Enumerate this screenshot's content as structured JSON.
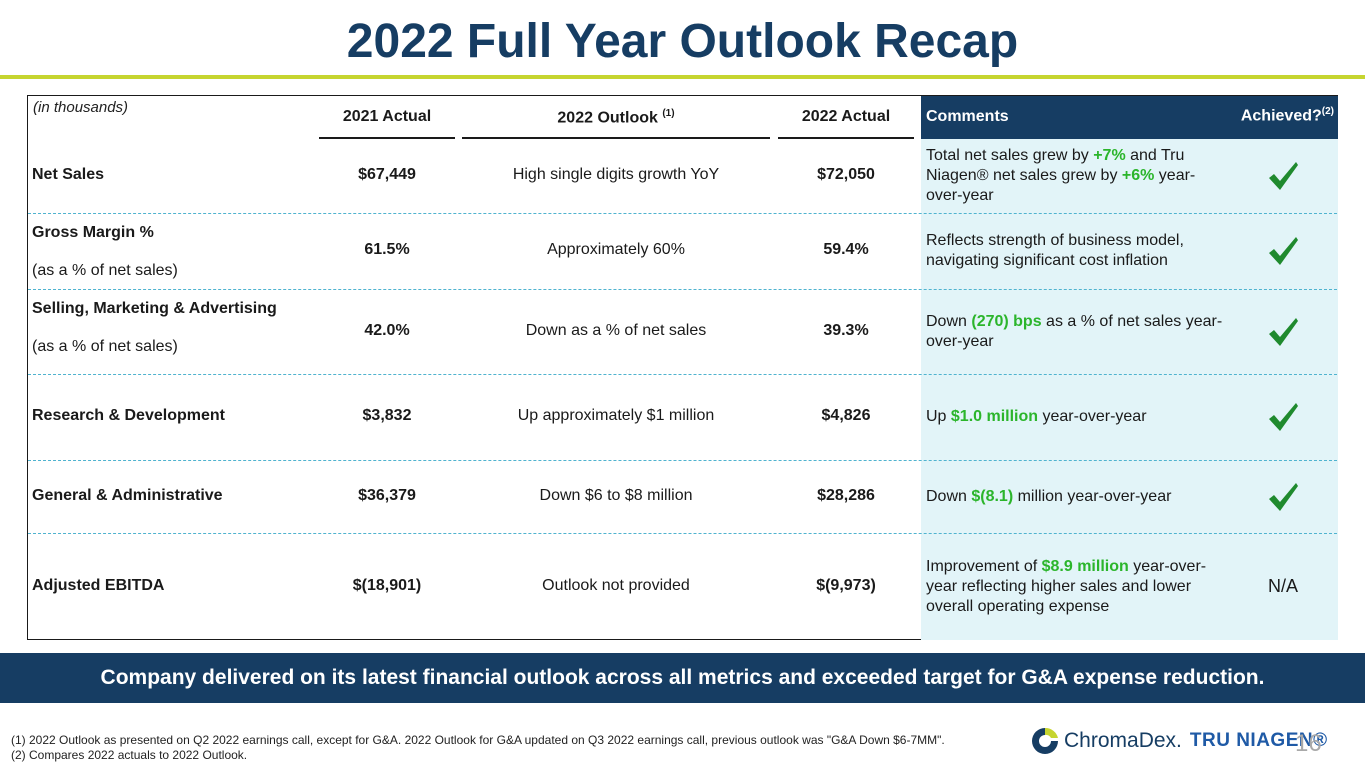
{
  "title": "2022 Full Year Outlook Recap",
  "table": {
    "units": "(in thousands)",
    "headers": {
      "actual_2021": "2021 Actual",
      "outlook_2022": "2022 Outlook",
      "outlook_note": "(1)",
      "actual_2022": "2022 Actual",
      "comments": "Comments",
      "achieved": "Achieved?",
      "achieved_note": "(2)"
    },
    "rows": [
      {
        "metric": "Net Sales",
        "sub": "",
        "actual_2021": "$67,449",
        "outlook_2022": "High single digits growth YoY",
        "actual_2022": "$72,050",
        "comment": [
          {
            "text": "Total net sales grew by ",
            "hl": false
          },
          {
            "text": "+7%",
            "hl": true
          },
          {
            "text": " and Tru Niagen® net sales grew by ",
            "hl": false
          },
          {
            "text": "+6%",
            "hl": true
          },
          {
            "text": " year-over-year",
            "hl": false
          }
        ],
        "achieved": "check"
      },
      {
        "metric": "Gross Margin %",
        "sub": "(as a % of net sales)",
        "actual_2021": "61.5%",
        "outlook_2022": "Approximately 60%",
        "actual_2022": "59.4%",
        "comment": [
          {
            "text": "Reflects strength of business model, navigating significant cost inflation",
            "hl": false
          }
        ],
        "achieved": "check"
      },
      {
        "metric": "Selling, Marketing & Advertising",
        "sub": "(as a % of net sales)",
        "actual_2021": "42.0%",
        "outlook_2022": "Down as a % of net sales",
        "actual_2022": "39.3%",
        "comment": [
          {
            "text": "Down ",
            "hl": false
          },
          {
            "text": "(270) bps",
            "hl": true
          },
          {
            "text": " as a % of net sales year-over-year",
            "hl": false
          }
        ],
        "achieved": "check"
      },
      {
        "metric": "Research & Development",
        "sub": "",
        "actual_2021": "$3,832",
        "outlook_2022": "Up approximately $1 million",
        "actual_2022": "$4,826",
        "comment": [
          {
            "text": "Up ",
            "hl": false
          },
          {
            "text": "$1.0 million",
            "hl": true
          },
          {
            "text": " year-over-year",
            "hl": false
          }
        ],
        "achieved": "check"
      },
      {
        "metric": "General & Administrative",
        "sub": "",
        "actual_2021": "$36,379",
        "outlook_2022": "Down $6 to $8 million",
        "actual_2022": "$28,286",
        "comment": [
          {
            "text": "Down ",
            "hl": false
          },
          {
            "text": "$(8.1)",
            "hl": true
          },
          {
            "text": " million year-over-year",
            "hl": false
          }
        ],
        "achieved": "check"
      },
      {
        "metric": "Adjusted EBITDA",
        "sub": "",
        "actual_2021": "$(18,901)",
        "outlook_2022": "Outlook not provided",
        "actual_2022": "$(9,973)",
        "comment": [
          {
            "text": "Improvement of ",
            "hl": false
          },
          {
            "text": "$8.9 million",
            "hl": true
          },
          {
            "text": " year-over-year reflecting higher sales and lower overall operating expense",
            "hl": false
          }
        ],
        "achieved": "N/A"
      }
    ]
  },
  "banner": "Company delivered on its latest financial outlook across all metrics and exceeded target for G&A expense reduction.",
  "footnotes": [
    "(1)   2022 Outlook as presented on Q2 2022 earnings call, except for G&A. 2022 Outlook for G&A updated on Q3 2022 earnings call, previous outlook was \"G&A Down $6-7MM\".",
    "(2)   Compares 2022 actuals to 2022 Outlook."
  ],
  "logo": {
    "brand": "ChromaDex.",
    "product": "TRU NIAGEN®"
  },
  "page_number": "16",
  "colors": {
    "navy": "#163d63",
    "accent_green": "#c6d530",
    "highlight_green": "#2bb52b",
    "comments_bg": "#e2f4f8",
    "divider": "#4fb3cf"
  },
  "icons": {
    "achieved": "checkmark-icon",
    "logo": "chromadex-logo-icon"
  }
}
